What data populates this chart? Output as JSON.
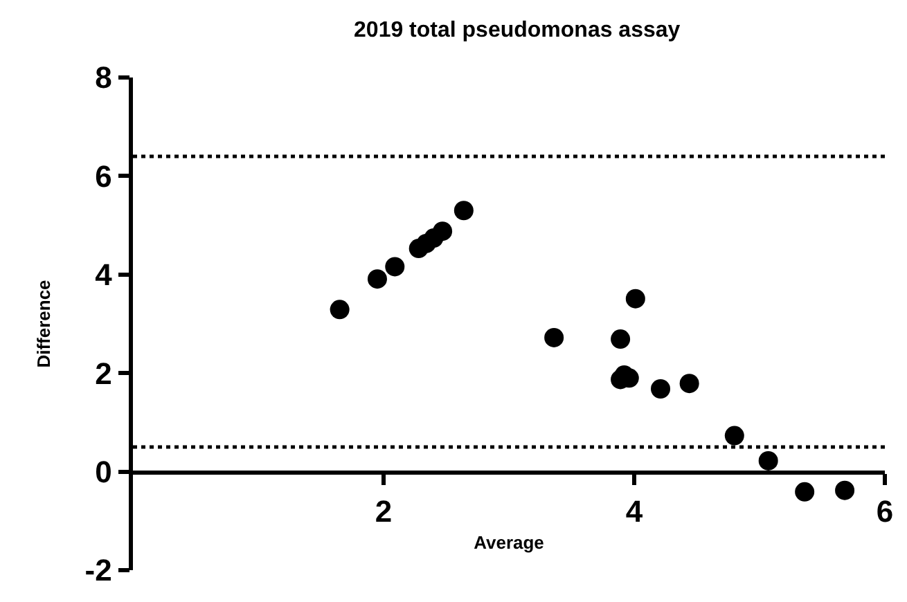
{
  "chart_data": {
    "type": "scatter",
    "title": "2019 total pseudomonas assay",
    "xlabel": "Average",
    "ylabel": "Difference",
    "x": [
      1.65,
      1.95,
      2.09,
      2.28,
      2.34,
      2.4,
      2.47,
      2.64,
      3.36,
      3.89,
      4.01,
      3.89,
      3.96,
      3.92,
      4.21,
      4.44,
      4.8,
      5.07,
      5.36,
      5.68
    ],
    "series": [
      {
        "color": "#000000",
        "values": [
          3.29,
          3.91,
          4.16,
          4.53,
          4.63,
          4.74,
          4.88,
          5.3,
          2.72,
          2.69,
          3.51,
          1.87,
          1.9,
          1.96,
          1.68,
          1.79,
          0.73,
          0.22,
          -0.41,
          -0.38
        ]
      }
    ],
    "xlim": [
      0,
      6
    ],
    "xticks": [
      2,
      4,
      6
    ],
    "ylim": [
      -2,
      8
    ],
    "yticks": [
      -2,
      0,
      2,
      4,
      6,
      8
    ],
    "ref_lines": [
      {
        "axis": "y",
        "value": 6.4,
        "line_style": "dotted",
        "color": "#000000"
      },
      {
        "axis": "y",
        "value": 0.5,
        "line_style": "dotted",
        "color": "#000000"
      }
    ],
    "marker": "circle"
  }
}
